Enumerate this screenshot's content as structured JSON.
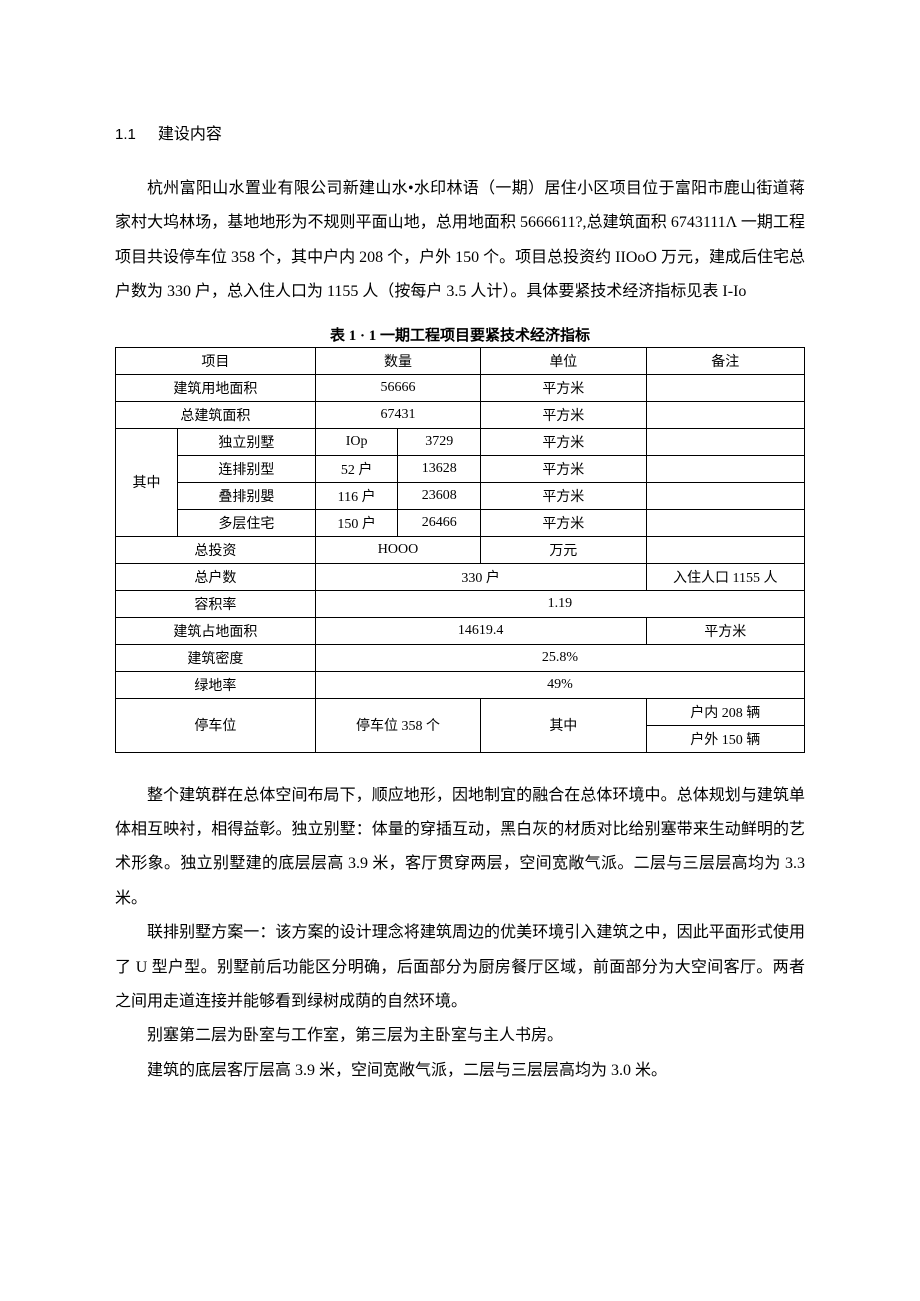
{
  "heading": {
    "num": "1.1",
    "title": "建设内容"
  },
  "para1": "杭州富阳山水置业有限公司新建山水•水印林语（一期）居住小区项目位于富阳市鹿山街道蒋家村大坞林场，基地地形为不规则平面山地，总用地面积 5666611?,总建筑面积 6743111Λ 一期工程项目共设停车位 358 个，其中户内 208 个，户外 150 个。项目总投资约 IIOoO 万元，建成后住宅总户数为 330 户，总入住人口为 1155 人（按每户 3.5 人计）。具体要紧技术经济指标见表 I-Io",
  "tableCaption": "表 1 · 1 一期工程项目要紧技术经济指标",
  "table": {
    "hdr": {
      "c1": "项目",
      "c2": "数量",
      "c3": "单位",
      "c4": "备注"
    },
    "r2": {
      "label": "建筑用地面积",
      "qty": "56666",
      "unit": "平方米"
    },
    "r3": {
      "label": "总建筑面积",
      "qty": "67431",
      "unit": "平方米"
    },
    "qz": "其中",
    "r4": {
      "label": "独立别墅",
      "q1": "IOp",
      "q2": "3729",
      "unit": "平方米"
    },
    "r5": {
      "label": "连排别型",
      "q1": "52 户",
      "q2": "13628",
      "unit": "平方米"
    },
    "r6": {
      "label": "叠排别嬰",
      "q1": "116 户",
      "q2": "23608",
      "unit": "平方米"
    },
    "r7": {
      "label": "多层住宅",
      "q1": "150 户",
      "q2": "26466",
      "unit": "平方米"
    },
    "r8": {
      "label": "总投资",
      "qty": "HOOO",
      "unit": "万元"
    },
    "r9": {
      "label": "总户数",
      "qty": "330 户",
      "note": "入住人口 1155 人"
    },
    "r10": {
      "label": "容积率",
      "qty": "1.19"
    },
    "r11": {
      "label": "建筑占地面积",
      "qty": "14619.4",
      "note": "平方米"
    },
    "r12": {
      "label": "建筑密度",
      "qty": "25.8%"
    },
    "r13": {
      "label": "绿地率",
      "qty": "49%"
    },
    "r14": {
      "label": "停车位",
      "qty": "停车位 358 个",
      "mid": "其中",
      "n1": "户内 208 辆",
      "n2": "户外 150 辆"
    }
  },
  "para2": "整个建筑群在总体空间布局下，顺应地形，因地制宜的融合在总体环境中。总体规划与建筑单体相互映衬，相得益彰。独立别墅：体量的穿插互动，黑白灰的材质对比给别塞带来生动鲜明的艺术形象。独立别墅建的底层层高 3.9 米，客厅贯穿两层，空间宽敞气派。二层与三层层高均为 3.3 米。",
  "para3": "联排别墅方案一：该方案的设计理念将建筑周边的优美环境引入建筑之中，因此平面形式使用了 U 型户型。别墅前后功能区分明确，后面部分为厨房餐厅区域，前面部分为大空间客厅。两者之间用走道连接并能够看到绿树成荫的自然环境。",
  "para4": "别塞第二层为卧室与工作室，第三层为主卧室与主人书房。",
  "para5": "建筑的底层客厅层高 3.9 米，空间宽敞气派，二层与三层层高均为 3.0 米。"
}
